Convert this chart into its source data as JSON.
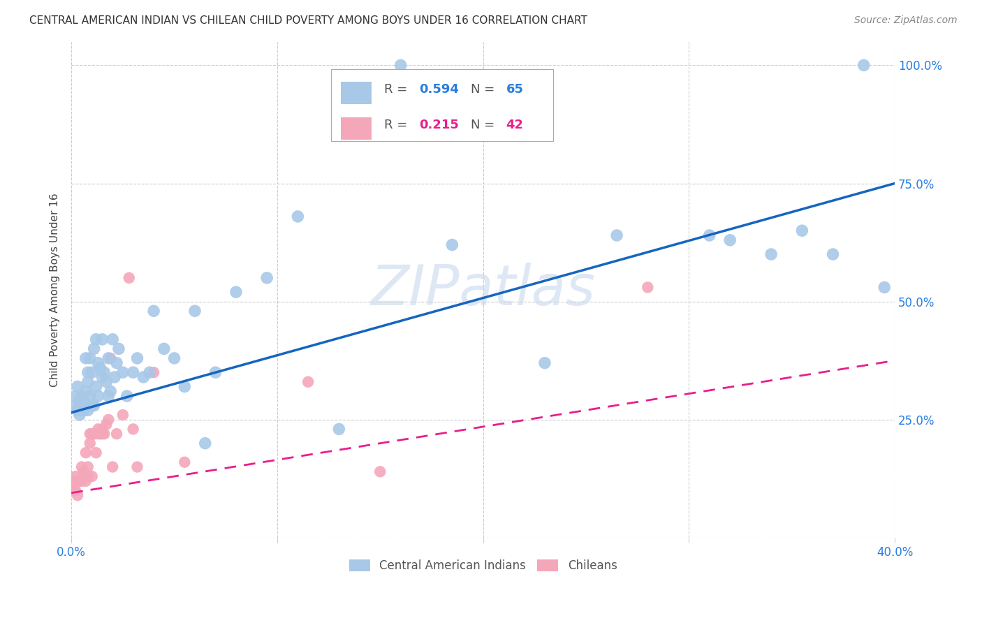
{
  "title": "CENTRAL AMERICAN INDIAN VS CHILEAN CHILD POVERTY AMONG BOYS UNDER 16 CORRELATION CHART",
  "source": "Source: ZipAtlas.com",
  "ylabel": "Child Poverty Among Boys Under 16",
  "xlim": [
    0.0,
    0.4
  ],
  "ylim": [
    0.0,
    1.05
  ],
  "xtick_vals": [
    0.0,
    0.1,
    0.2,
    0.3,
    0.4
  ],
  "xticklabels": [
    "0.0%",
    "",
    "",
    "",
    "40.0%"
  ],
  "ytick_vals": [
    0.0,
    0.25,
    0.5,
    0.75,
    1.0
  ],
  "yticklabels_right": [
    "",
    "25.0%",
    "50.0%",
    "75.0%",
    "100.0%"
  ],
  "blue_R": "0.594",
  "blue_N": "65",
  "pink_R": "0.215",
  "pink_N": "42",
  "blue_color": "#a8c8e8",
  "pink_color": "#f4a7b9",
  "blue_line_color": "#1565c0",
  "pink_line_color": "#e91e8c",
  "blue_label": "Central American Indians",
  "pink_label": "Chileans",
  "watermark": "ZIPatlas",
  "blue_scatter_x": [
    0.001,
    0.002,
    0.003,
    0.003,
    0.004,
    0.004,
    0.005,
    0.005,
    0.006,
    0.006,
    0.007,
    0.007,
    0.008,
    0.008,
    0.008,
    0.009,
    0.009,
    0.01,
    0.01,
    0.011,
    0.011,
    0.012,
    0.012,
    0.013,
    0.013,
    0.014,
    0.015,
    0.015,
    0.016,
    0.017,
    0.018,
    0.018,
    0.019,
    0.02,
    0.021,
    0.022,
    0.023,
    0.025,
    0.027,
    0.03,
    0.032,
    0.035,
    0.038,
    0.04,
    0.045,
    0.05,
    0.055,
    0.06,
    0.065,
    0.07,
    0.08,
    0.095,
    0.11,
    0.13,
    0.16,
    0.185,
    0.23,
    0.265,
    0.31,
    0.32,
    0.34,
    0.355,
    0.37,
    0.385,
    0.395
  ],
  "blue_scatter_y": [
    0.28,
    0.3,
    0.27,
    0.32,
    0.26,
    0.29,
    0.28,
    0.3,
    0.27,
    0.29,
    0.31,
    0.38,
    0.33,
    0.35,
    0.27,
    0.38,
    0.3,
    0.28,
    0.35,
    0.4,
    0.28,
    0.42,
    0.32,
    0.3,
    0.37,
    0.36,
    0.42,
    0.34,
    0.35,
    0.33,
    0.38,
    0.3,
    0.31,
    0.42,
    0.34,
    0.37,
    0.4,
    0.35,
    0.3,
    0.35,
    0.38,
    0.34,
    0.35,
    0.48,
    0.4,
    0.38,
    0.32,
    0.48,
    0.2,
    0.35,
    0.52,
    0.55,
    0.68,
    0.23,
    1.0,
    0.62,
    0.37,
    0.64,
    0.64,
    0.63,
    0.6,
    0.65,
    0.6,
    1.0,
    0.53
  ],
  "pink_scatter_x": [
    0.001,
    0.001,
    0.002,
    0.002,
    0.003,
    0.003,
    0.004,
    0.005,
    0.005,
    0.006,
    0.006,
    0.007,
    0.007,
    0.008,
    0.008,
    0.009,
    0.009,
    0.01,
    0.01,
    0.011,
    0.011,
    0.012,
    0.013,
    0.013,
    0.014,
    0.015,
    0.015,
    0.016,
    0.017,
    0.018,
    0.019,
    0.02,
    0.022,
    0.025,
    0.028,
    0.03,
    0.032,
    0.04,
    0.055,
    0.115,
    0.15,
    0.28
  ],
  "pink_scatter_y": [
    0.12,
    0.1,
    0.1,
    0.13,
    0.09,
    0.12,
    0.12,
    0.12,
    0.15,
    0.14,
    0.13,
    0.12,
    0.18,
    0.13,
    0.15,
    0.2,
    0.22,
    0.22,
    0.13,
    0.22,
    0.22,
    0.18,
    0.22,
    0.23,
    0.22,
    0.22,
    0.23,
    0.22,
    0.24,
    0.25,
    0.38,
    0.15,
    0.22,
    0.26,
    0.55,
    0.23,
    0.15,
    0.35,
    0.16,
    0.33,
    0.14,
    0.53
  ],
  "blue_line_x0": 0.0,
  "blue_line_y0": 0.265,
  "blue_line_x1": 0.4,
  "blue_line_y1": 0.75,
  "pink_line_x0": 0.0,
  "pink_line_y0": 0.095,
  "pink_line_x1": 0.4,
  "pink_line_y1": 0.375
}
